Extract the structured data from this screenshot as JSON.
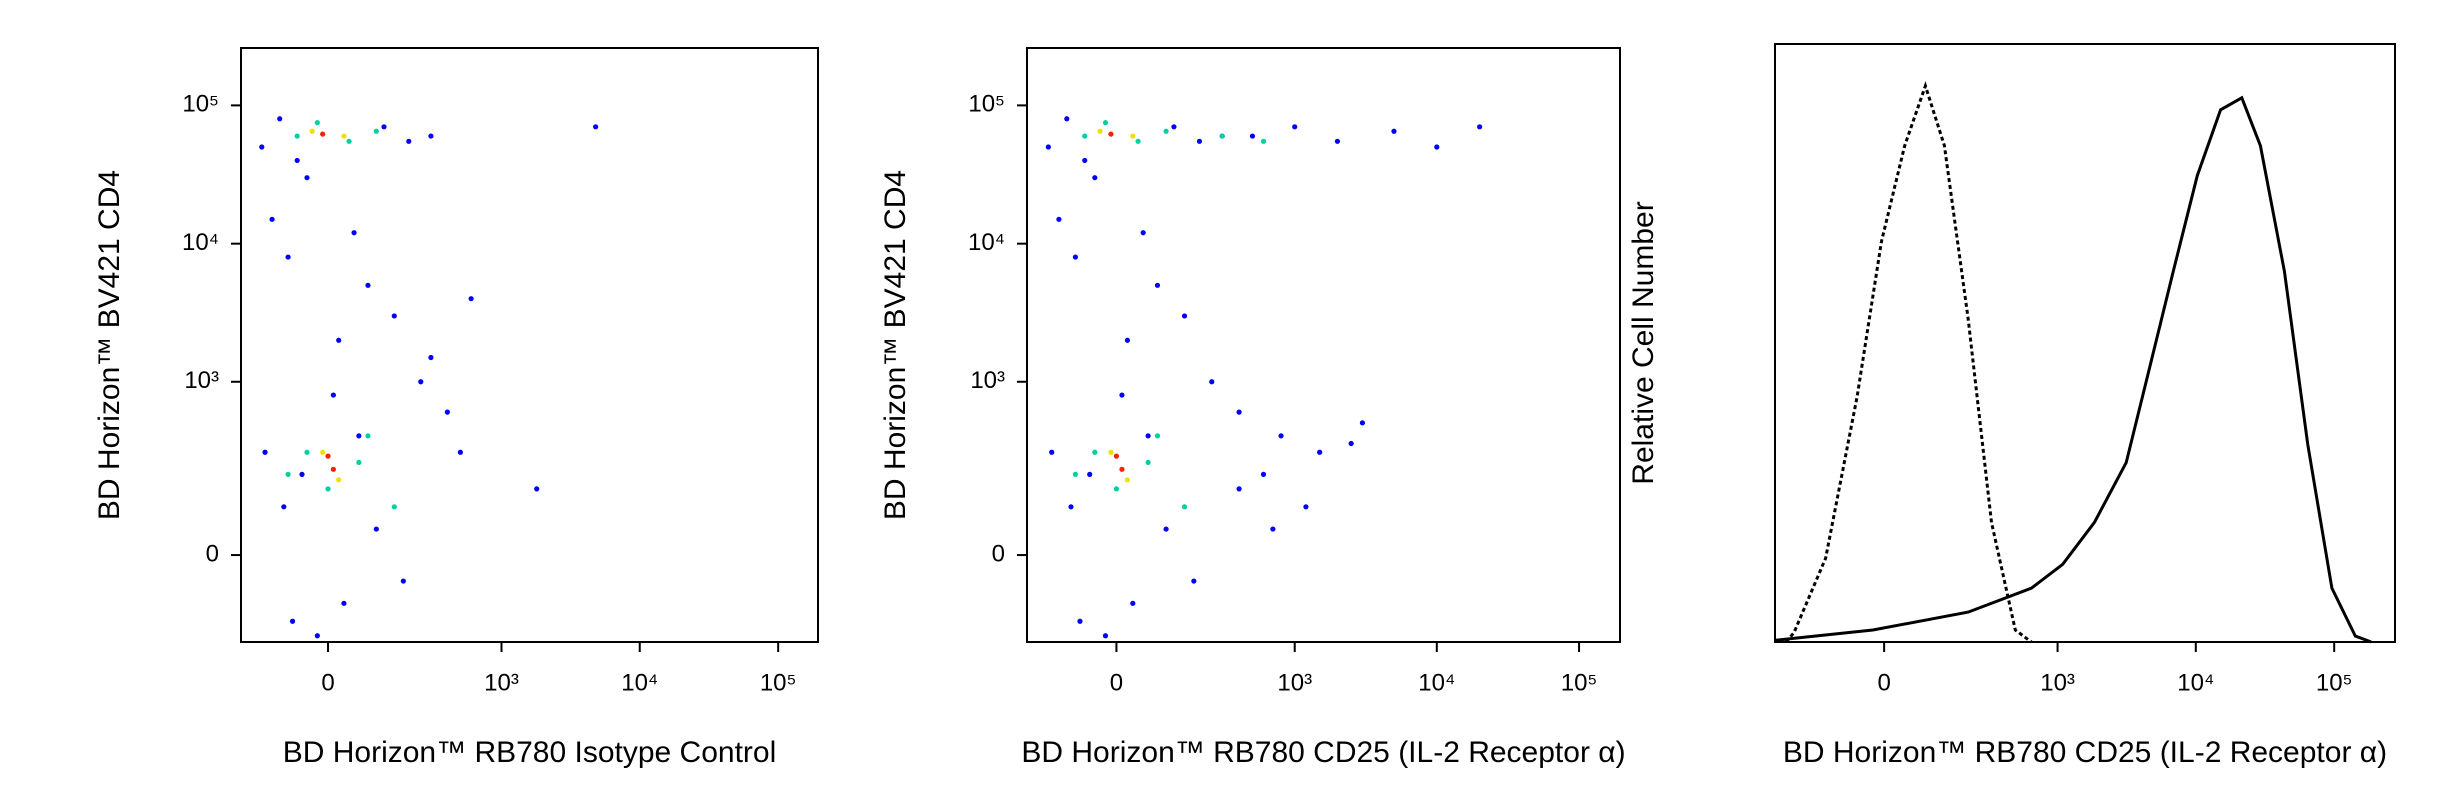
{
  "chart_data": [
    {
      "type": "scatter",
      "scale": "biexponential",
      "xlabel": "BD Horizon™ RB780 Isotype Control",
      "ylabel": "BD Horizon™ BV421 CD4",
      "xlim": [
        -225,
        194000
      ],
      "ylim": [
        -225,
        260000
      ],
      "xticks": [
        0,
        {
          "value": 1000,
          "label": "10³"
        },
        {
          "value": 10000,
          "label": "10⁴"
        },
        {
          "value": 100000,
          "label": "10⁵"
        }
      ],
      "yticks": [
        0,
        {
          "value": 1000,
          "label": "10³"
        },
        {
          "value": 10000,
          "label": "10⁴"
        },
        {
          "value": 100000,
          "label": "10⁵"
        }
      ],
      "series": [
        {
          "color": "#0000ff",
          "x": [
            -150,
            -100,
            -60,
            120,
            200,
            300,
            -120,
            80,
            -80,
            150,
            250,
            400,
            -40,
            20,
            60,
            -90,
            100,
            30,
            500,
            1800,
            4800,
            -70,
            -20,
            10,
            300,
            -140,
            180,
            600,
            50,
            -50
          ],
          "values": [
            50000,
            80000,
            40000,
            70000,
            55000,
            60000,
            15000,
            5000,
            8000,
            3000,
            1000,
            600,
            30000,
            2000,
            400,
            100,
            50,
            -100,
            300,
            150,
            70000,
            -150,
            -200,
            800,
            1500,
            300,
            -50,
            4000,
            12000,
            200
          ]
        },
        {
          "color": "#00d0a0",
          "x": [
            -60,
            -20,
            40,
            100,
            -40,
            60,
            0,
            80,
            -80,
            150
          ],
          "values": [
            60000,
            75000,
            55000,
            65000,
            300,
            250,
            150,
            400,
            200,
            100
          ]
        },
        {
          "color": "#f0e000",
          "x": [
            -30,
            30,
            -10,
            20
          ],
          "values": [
            65000,
            60000,
            300,
            180
          ]
        },
        {
          "color": "#ff2000",
          "x": [
            -10,
            0,
            10
          ],
          "values": [
            62000,
            280,
            220
          ]
        }
      ]
    },
    {
      "type": "scatter",
      "scale": "biexponential",
      "xlabel": "BD Horizon™ RB780 CD25 (IL-2 Receptor α)",
      "ylabel": "BD Horizon™ BV421 CD4",
      "xlim": [
        -225,
        194000
      ],
      "ylim": [
        -225,
        260000
      ],
      "xticks": [
        0,
        {
          "value": 1000,
          "label": "10³"
        },
        {
          "value": 10000,
          "label": "10⁴"
        },
        {
          "value": 100000,
          "label": "10⁵"
        }
      ],
      "yticks": [
        0,
        {
          "value": 1000,
          "label": "10³"
        },
        {
          "value": 10000,
          "label": "10⁴"
        },
        {
          "value": 100000,
          "label": "10⁵"
        }
      ],
      "series": [
        {
          "color": "#0000ff",
          "x": [
            -150,
            -100,
            -60,
            120,
            200,
            300,
            -120,
            80,
            -80,
            150,
            250,
            400,
            -40,
            20,
            60,
            -90,
            100,
            30,
            -70,
            -20,
            10,
            -140,
            180,
            50,
            -50,
            500,
            1000,
            2000,
            5000,
            10000,
            20000,
            800,
            1500,
            3000,
            600,
            1200,
            2500,
            400,
            700
          ],
          "values": [
            50000,
            80000,
            40000,
            70000,
            55000,
            60000,
            15000,
            5000,
            8000,
            3000,
            1000,
            600,
            30000,
            2000,
            400,
            100,
            50,
            -100,
            -150,
            -200,
            800,
            300,
            -50,
            12000,
            200,
            60000,
            70000,
            55000,
            65000,
            50000,
            70000,
            400,
            300,
            500,
            200,
            100,
            350,
            150,
            50
          ]
        },
        {
          "color": "#00d0a0",
          "x": [
            -60,
            -20,
            40,
            100,
            300,
            600,
            -40,
            60,
            0,
            80,
            -80,
            150
          ],
          "values": [
            60000,
            75000,
            55000,
            65000,
            60000,
            55000,
            300,
            250,
            150,
            400,
            200,
            100
          ]
        },
        {
          "color": "#f0e000",
          "x": [
            -30,
            30,
            -10,
            20
          ],
          "values": [
            65000,
            60000,
            300,
            180
          ]
        },
        {
          "color": "#ff2000",
          "x": [
            -10,
            0,
            10
          ],
          "values": [
            62000,
            280,
            220
          ]
        }
      ]
    },
    {
      "type": "line",
      "scale": "biexponential",
      "xlabel": "BD Horizon™ RB780 CD25 (IL-2 Receptor α)",
      "ylabel": "Relative Cell Number",
      "xlim": [
        -335,
        275000
      ],
      "ylim": [
        0,
        100
      ],
      "xticks": [
        0,
        {
          "value": 1000,
          "label": "10³"
        },
        {
          "value": 10000,
          "label": "10⁴"
        },
        {
          "value": 100000,
          "label": "10⁵"
        }
      ],
      "series": [
        {
          "color": "#000000",
          "dash": true,
          "x": [
            -275,
            -238,
            -127,
            -52,
            -5,
            39,
            83,
            132,
            213,
            325,
            490,
            644
          ],
          "values": [
            0,
            1.6,
            14,
            41,
            67,
            83,
            93,
            83,
            54,
            20,
            2,
            0
          ]
        },
        {
          "color": "#000000",
          "dash": false,
          "x": [
            -330,
            -21,
            213,
            644,
            1090,
            1850,
            3140,
            4650,
            6880,
            10250,
            15100,
            21500,
            29300,
            43700,
            64500,
            96300,
            142000,
            185000
          ],
          "values": [
            0.3,
            2,
            5,
            9,
            13,
            20,
            30,
            46,
            62,
            78,
            89,
            91,
            83,
            62,
            33,
            9,
            1,
            0
          ]
        }
      ]
    }
  ]
}
